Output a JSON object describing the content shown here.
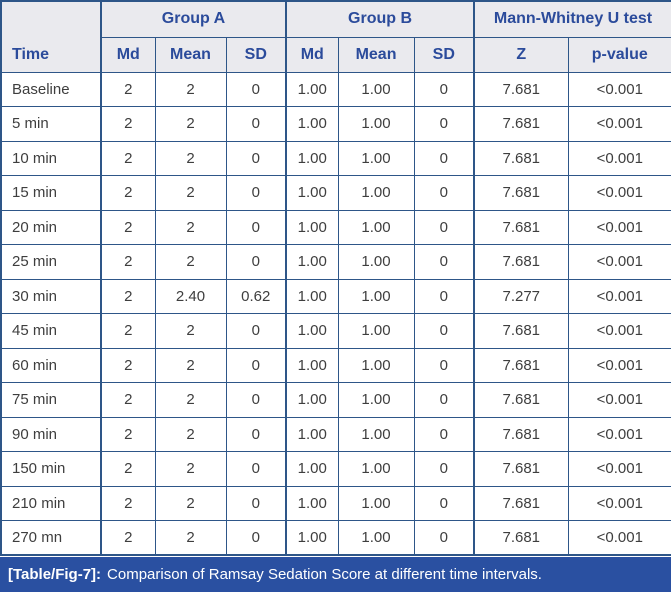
{
  "table": {
    "header": {
      "time_label": "Time",
      "group_a": "Group A",
      "group_b": "Group B",
      "mann_whitney": "Mann-Whitney U test",
      "sub": [
        "Md",
        "Mean",
        "SD",
        "Md",
        "Mean",
        "SD",
        "Z",
        "p-value"
      ]
    },
    "rows": [
      {
        "time": "Baseline",
        "values": [
          "2",
          "2",
          "0",
          "1.00",
          "1.00",
          "0",
          "7.681",
          "<0.001"
        ]
      },
      {
        "time": "5 min",
        "values": [
          "2",
          "2",
          "0",
          "1.00",
          "1.00",
          "0",
          "7.681",
          "<0.001"
        ]
      },
      {
        "time": "10 min",
        "values": [
          "2",
          "2",
          "0",
          "1.00",
          "1.00",
          "0",
          "7.681",
          "<0.001"
        ]
      },
      {
        "time": "15 min",
        "values": [
          "2",
          "2",
          "0",
          "1.00",
          "1.00",
          "0",
          "7.681",
          "<0.001"
        ]
      },
      {
        "time": "20 min",
        "values": [
          "2",
          "2",
          "0",
          "1.00",
          "1.00",
          "0",
          "7.681",
          "<0.001"
        ]
      },
      {
        "time": "25 min",
        "values": [
          "2",
          "2",
          "0",
          "1.00",
          "1.00",
          "0",
          "7.681",
          "<0.001"
        ]
      },
      {
        "time": "30 min",
        "values": [
          "2",
          "2.40",
          "0.62",
          "1.00",
          "1.00",
          "0",
          "7.277",
          "<0.001"
        ]
      },
      {
        "time": "45 min",
        "values": [
          "2",
          "2",
          "0",
          "1.00",
          "1.00",
          "0",
          "7.681",
          "<0.001"
        ]
      },
      {
        "time": "60 min",
        "values": [
          "2",
          "2",
          "0",
          "1.00",
          "1.00",
          "0",
          "7.681",
          "<0.001"
        ]
      },
      {
        "time": "75 min",
        "values": [
          "2",
          "2",
          "0",
          "1.00",
          "1.00",
          "0",
          "7.681",
          "<0.001"
        ]
      },
      {
        "time": "90 min",
        "values": [
          "2",
          "2",
          "0",
          "1.00",
          "1.00",
          "0",
          "7.681",
          "<0.001"
        ]
      },
      {
        "time": "150 min",
        "values": [
          "2",
          "2",
          "0",
          "1.00",
          "1.00",
          "0",
          "7.681",
          "<0.001"
        ]
      },
      {
        "time": "210 min",
        "values": [
          "2",
          "2",
          "0",
          "1.00",
          "1.00",
          "0",
          "7.681",
          "<0.001"
        ]
      },
      {
        "time": "270 mn",
        "values": [
          "2",
          "2",
          "0",
          "1.00",
          "1.00",
          "0",
          "7.681",
          "<0.001"
        ]
      }
    ],
    "caption": {
      "tag": "[Table/Fig-7]:",
      "text": "Comparison of Ramsay Sedation Score at different time intervals."
    }
  },
  "colors": {
    "grid_border": "#2e5688",
    "header_bg": "#eaeaee",
    "header_text": "#2b4b9b",
    "body_text": "#3e3e3e",
    "caption_bg": "#2a50a1",
    "caption_text": "#ffffff"
  }
}
